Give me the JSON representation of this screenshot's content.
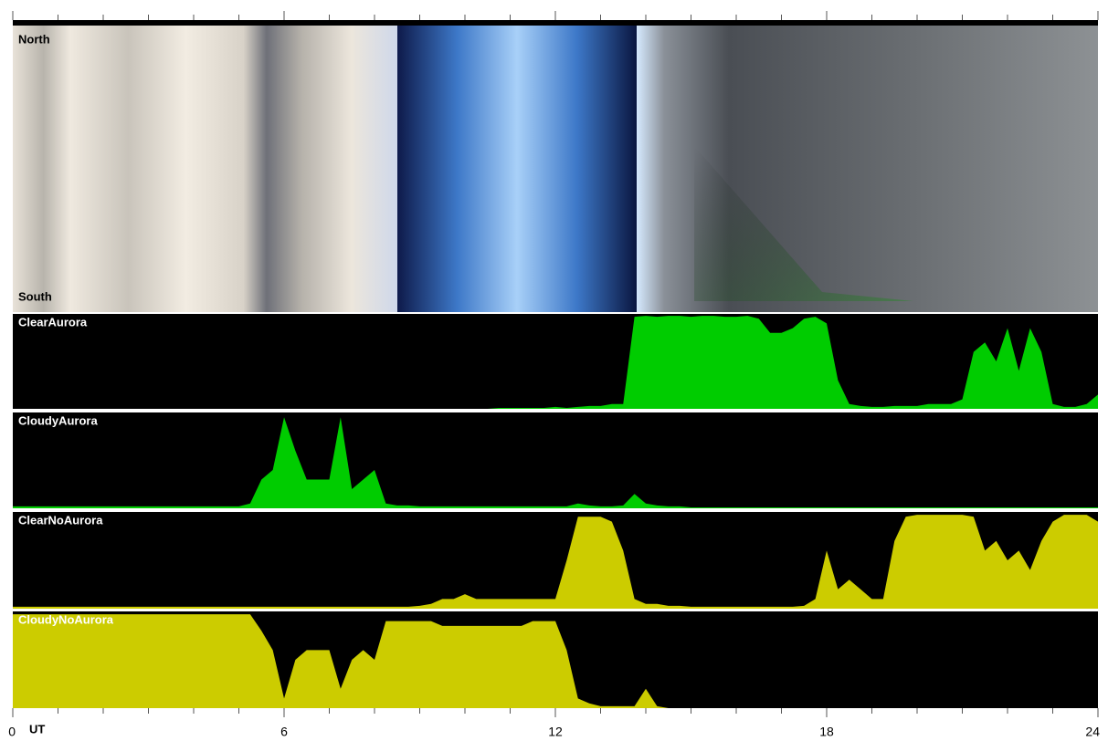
{
  "chart_data": {
    "type": "area",
    "annotations": [
      "North",
      "South"
    ],
    "x_label": "UT",
    "xlim": [
      0,
      24
    ],
    "xticks": [
      0,
      6,
      12,
      18,
      24
    ],
    "xminorticks": [
      1,
      2,
      3,
      4,
      5,
      7,
      8,
      9,
      10,
      11,
      13,
      14,
      15,
      16,
      17,
      19,
      20,
      21,
      22,
      23
    ],
    "ylim": [
      0,
      1
    ],
    "x": [
      0,
      0.25,
      0.5,
      0.75,
      1,
      1.25,
      1.5,
      1.75,
      2,
      2.25,
      2.5,
      2.75,
      3,
      3.25,
      3.5,
      3.75,
      4,
      4.25,
      4.5,
      4.75,
      5,
      5.25,
      5.5,
      5.75,
      6,
      6.25,
      6.5,
      6.75,
      7,
      7.25,
      7.5,
      7.75,
      8,
      8.25,
      8.5,
      8.75,
      9,
      9.25,
      9.5,
      9.75,
      10,
      10.25,
      10.5,
      10.75,
      11,
      11.25,
      11.5,
      11.75,
      12,
      12.25,
      12.5,
      12.75,
      13,
      13.25,
      13.5,
      13.75,
      14,
      14.25,
      14.5,
      14.75,
      15,
      15.25,
      15.5,
      15.75,
      16,
      16.25,
      16.5,
      16.75,
      17,
      17.25,
      17.5,
      17.75,
      18,
      18.25,
      18.5,
      18.75,
      19,
      19.25,
      19.5,
      19.75,
      20,
      20.25,
      20.5,
      20.75,
      21,
      21.25,
      21.5,
      21.75,
      22,
      22.25,
      22.5,
      22.75,
      23,
      23.25,
      23.5,
      23.75,
      24
    ],
    "series": [
      {
        "name": "ClearAurora",
        "color": "#00cc00",
        "values": [
          0,
          0,
          0,
          0,
          0,
          0,
          0,
          0,
          0,
          0,
          0,
          0,
          0,
          0,
          0,
          0,
          0,
          0,
          0,
          0,
          0,
          0,
          0,
          0,
          0,
          0,
          0,
          0,
          0,
          0,
          0,
          0,
          0,
          0,
          0,
          0,
          0,
          0,
          0,
          0,
          0,
          0,
          0,
          0.01,
          0.01,
          0.01,
          0.01,
          0.01,
          0.02,
          0.01,
          0.02,
          0.03,
          0.03,
          0.05,
          0.05,
          0.97,
          0.98,
          0.97,
          0.98,
          0.98,
          0.97,
          0.98,
          0.98,
          0.97,
          0.97,
          0.98,
          0.95,
          0.8,
          0.8,
          0.85,
          0.95,
          0.97,
          0.9,
          0.3,
          0.05,
          0.03,
          0.02,
          0.02,
          0.03,
          0.03,
          0.03,
          0.05,
          0.05,
          0.05,
          0.1,
          0.6,
          0.7,
          0.5,
          0.85,
          0.4,
          0.85,
          0.6,
          0.05,
          0.02,
          0.02,
          0.05,
          0.15
        ]
      },
      {
        "name": "CloudyAurora",
        "color": "#00cc00",
        "values": [
          0.02,
          0.02,
          0.02,
          0.02,
          0.02,
          0.02,
          0.02,
          0.02,
          0.02,
          0.02,
          0.02,
          0.02,
          0.02,
          0.02,
          0.02,
          0.02,
          0.02,
          0.02,
          0.02,
          0.02,
          0.02,
          0.05,
          0.3,
          0.4,
          0.95,
          0.6,
          0.3,
          0.3,
          0.3,
          0.95,
          0.2,
          0.3,
          0.4,
          0.05,
          0.03,
          0.03,
          0.02,
          0.02,
          0.02,
          0.02,
          0.02,
          0.02,
          0.02,
          0.02,
          0.02,
          0.02,
          0.02,
          0.02,
          0.02,
          0.02,
          0.05,
          0.03,
          0.02,
          0.02,
          0.03,
          0.15,
          0.05,
          0.03,
          0.02,
          0.02,
          0.01,
          0.01,
          0.01,
          0.01,
          0.01,
          0.01,
          0.01,
          0.01,
          0.01,
          0.01,
          0.01,
          0.01,
          0.01,
          0.01,
          0.01,
          0.01,
          0.01,
          0.01,
          0.01,
          0.01,
          0.01,
          0.01,
          0.01,
          0.01,
          0.01,
          0.01,
          0.01,
          0.01,
          0.01,
          0.01,
          0.01,
          0.01,
          0.01,
          0.01,
          0.01,
          0.01,
          0.01
        ]
      },
      {
        "name": "ClearNoAurora",
        "color": "#cccc00",
        "values": [
          0.02,
          0.02,
          0.02,
          0.02,
          0.02,
          0.02,
          0.02,
          0.02,
          0.02,
          0.02,
          0.02,
          0.02,
          0.02,
          0.02,
          0.02,
          0.02,
          0.02,
          0.02,
          0.02,
          0.02,
          0.02,
          0.02,
          0.02,
          0.02,
          0.02,
          0.02,
          0.02,
          0.02,
          0.02,
          0.02,
          0.02,
          0.02,
          0.02,
          0.02,
          0.02,
          0.02,
          0.03,
          0.05,
          0.1,
          0.1,
          0.15,
          0.1,
          0.1,
          0.1,
          0.1,
          0.1,
          0.1,
          0.1,
          0.1,
          0.5,
          0.95,
          0.95,
          0.95,
          0.9,
          0.6,
          0.1,
          0.05,
          0.05,
          0.03,
          0.03,
          0.02,
          0.02,
          0.02,
          0.02,
          0.02,
          0.02,
          0.02,
          0.02,
          0.02,
          0.02,
          0.03,
          0.1,
          0.6,
          0.2,
          0.3,
          0.2,
          0.1,
          0.1,
          0.7,
          0.95,
          0.97,
          0.97,
          0.97,
          0.97,
          0.97,
          0.95,
          0.6,
          0.7,
          0.5,
          0.6,
          0.4,
          0.7,
          0.9,
          0.97,
          0.97,
          0.97,
          0.9
        ]
      },
      {
        "name": "CloudyNoAurora",
        "color": "#cccc00",
        "values": [
          0.97,
          0.97,
          0.97,
          0.97,
          0.97,
          0.97,
          0.97,
          0.97,
          0.97,
          0.97,
          0.97,
          0.97,
          0.97,
          0.97,
          0.97,
          0.97,
          0.97,
          0.97,
          0.97,
          0.97,
          0.97,
          0.97,
          0.8,
          0.6,
          0.1,
          0.5,
          0.6,
          0.6,
          0.6,
          0.2,
          0.5,
          0.6,
          0.5,
          0.9,
          0.9,
          0.9,
          0.9,
          0.9,
          0.85,
          0.85,
          0.85,
          0.85,
          0.85,
          0.85,
          0.85,
          0.85,
          0.9,
          0.9,
          0.9,
          0.6,
          0.1,
          0.05,
          0.02,
          0.02,
          0.02,
          0.02,
          0.2,
          0.02,
          0,
          0,
          0,
          0,
          0,
          0,
          0,
          0,
          0,
          0,
          0,
          0,
          0,
          0,
          0,
          0,
          0,
          0,
          0,
          0,
          0,
          0,
          0,
          0,
          0,
          0,
          0,
          0,
          0,
          0,
          0,
          0,
          0,
          0,
          0,
          0,
          0,
          0,
          0
        ]
      }
    ]
  }
}
